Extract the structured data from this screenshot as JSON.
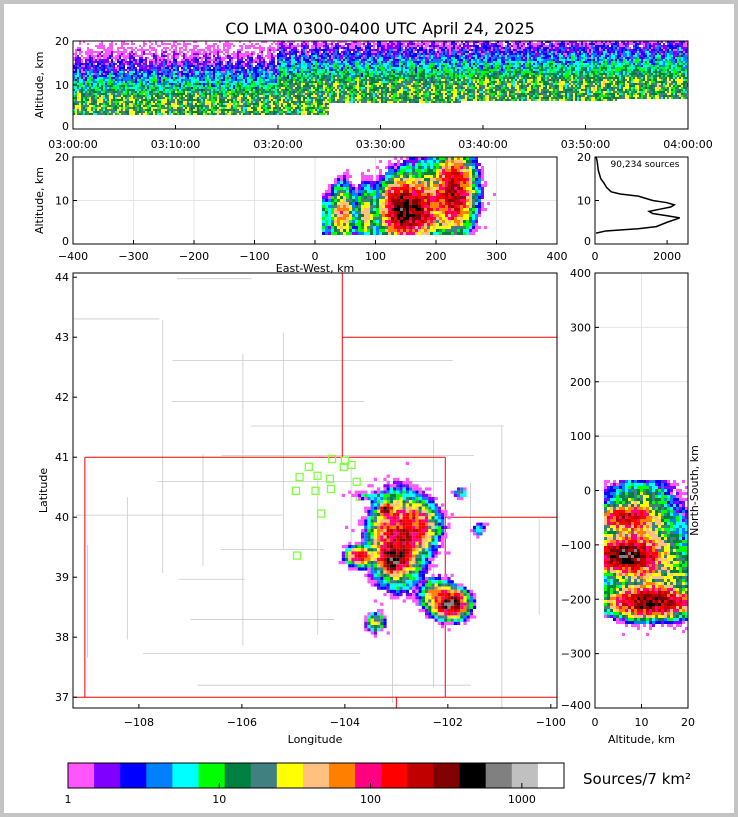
{
  "chart_data": [
    {
      "id": "time_height",
      "type": "heatmap",
      "title": "CO LMA 0300-0400 UTC April 24, 2025",
      "xlabel": "",
      "ylabel": "Altitude, km",
      "xlim": [
        0,
        60
      ],
      "ylim": [
        0,
        20
      ],
      "xticks": [
        0,
        10,
        20,
        30,
        40,
        50,
        60
      ],
      "xticklabels": [
        "03:00:00",
        "03:10:00",
        "03:20:00",
        "03:30:00",
        "03:40:00",
        "03:50:00",
        "04:00:00"
      ],
      "yticks": [
        0,
        10,
        20
      ]
    },
    {
      "id": "ew_height",
      "type": "heatmap",
      "xlabel": "East-West, km",
      "ylabel": "Altitude, km",
      "xlim": [
        -400,
        400
      ],
      "ylim": [
        0,
        20
      ],
      "xticks": [
        -400,
        -300,
        -200,
        -100,
        0,
        100,
        200,
        300,
        400
      ],
      "xticklabels": [
        "−400",
        "−300",
        "−200",
        "−100",
        "0",
        "100",
        "200",
        "300",
        "400"
      ],
      "yticks": [
        0,
        10,
        20
      ],
      "cells": [
        [
          16,
          6,
          3,
          2.5,
          12
        ],
        [
          45,
          7,
          10,
          3,
          60
        ],
        [
          85,
          7,
          8,
          3,
          40
        ],
        [
          145,
          8,
          16,
          3,
          400
        ],
        [
          175,
          8,
          18,
          3,
          150
        ],
        [
          230,
          12,
          14,
          4,
          250
        ],
        [
          195,
          12,
          30,
          4,
          20
        ]
      ]
    },
    {
      "id": "altitude_histogram",
      "type": "line",
      "annotation": "90,234 sources",
      "xlim": [
        0,
        2580
      ],
      "ylim": [
        0,
        20
      ],
      "xticks": [
        0,
        2000
      ],
      "xticklabels": [
        "0",
        "2000"
      ],
      "yticks": [
        0,
        10,
        20
      ],
      "alt": [
        2.5,
        3,
        3.5,
        4,
        5,
        6,
        6.5,
        7,
        7.5,
        8,
        8.5,
        9,
        9.5,
        10,
        11,
        11.5,
        12,
        13,
        14,
        15,
        17,
        19,
        20
      ],
      "count": [
        30,
        300,
        1200,
        1700,
        2000,
        2350,
        2000,
        1600,
        1500,
        1800,
        2100,
        2200,
        2000,
        1600,
        1200,
        700,
        450,
        320,
        250,
        160,
        90,
        60,
        30
      ]
    },
    {
      "id": "plan_view",
      "type": "heatmap",
      "xlabel": "Longitude",
      "ylabel": "Latitude",
      "xlim": [
        -109.28,
        -99.88
      ],
      "ylim": [
        36.82,
        44.07
      ],
      "xticks": [
        -108,
        -106,
        -104,
        -102,
        -100
      ],
      "xticklabels": [
        "−108",
        "−106",
        "−104",
        "−102",
        "−100"
      ],
      "yticks": [
        37,
        38,
        39,
        40,
        41,
        42,
        43,
        44
      ],
      "yticklabels": [
        "37",
        "38",
        "39",
        "40",
        "41",
        "42",
        "43",
        "44"
      ],
      "cells": [
        [
          -102.97,
          39.63,
          0.22,
          0.3,
          200
        ],
        [
          -103.05,
          39.3,
          0.12,
          0.1,
          600
        ],
        [
          -102.6,
          39.85,
          0.18,
          0.18,
          120
        ],
        [
          -102.21,
          38.7,
          0.15,
          0.12,
          60
        ],
        [
          -101.95,
          38.55,
          0.14,
          0.1,
          500
        ],
        [
          -103.7,
          39.35,
          0.12,
          0.07,
          150
        ],
        [
          -103.4,
          38.25,
          0.08,
          0.07,
          40
        ],
        [
          -101.75,
          40.4,
          0.06,
          0.04,
          15
        ],
        [
          -101.4,
          39.8,
          0.06,
          0.05,
          10
        ],
        [
          -103.45,
          40.35,
          0.18,
          0.03,
          8
        ],
        [
          -103.2,
          40.12,
          0.05,
          0.05,
          500
        ]
      ],
      "stations": [
        [
          -104.25,
          40.97
        ],
        [
          -104.0,
          40.94
        ],
        [
          -104.7,
          40.84
        ],
        [
          -104.02,
          40.84
        ],
        [
          -103.87,
          40.87
        ],
        [
          -104.88,
          40.67
        ],
        [
          -104.53,
          40.69
        ],
        [
          -104.29,
          40.64
        ],
        [
          -103.77,
          40.59
        ],
        [
          -104.95,
          40.44
        ],
        [
          -104.57,
          40.44
        ],
        [
          -104.27,
          40.47
        ],
        [
          -103.71,
          40.34
        ],
        [
          -104.46,
          40.06
        ],
        [
          -104.93,
          39.36
        ]
      ],
      "station_color": "#80ff40",
      "border_color": "#ff0000"
    },
    {
      "id": "ns_height",
      "type": "heatmap",
      "xlabel": "Altitude, km",
      "ylabel": "North-South, km",
      "xlim": [
        0,
        20
      ],
      "ylim": [
        -400,
        400
      ],
      "xticks": [
        0,
        10,
        20
      ],
      "yticks": [
        -400,
        -300,
        -200,
        -100,
        0,
        100,
        200,
        300,
        400
      ],
      "yticklabels": [
        "−400",
        "−300",
        "−200",
        "−100",
        "0",
        "100",
        "200",
        "300",
        "400"
      ],
      "cells": [
        [
          7,
          -50,
          3,
          10,
          200
        ],
        [
          7,
          -120,
          3,
          14,
          500
        ],
        [
          12,
          -205,
          4,
          12,
          400
        ],
        [
          9,
          -90,
          5,
          40,
          40
        ],
        [
          13,
          -160,
          5,
          30,
          30
        ],
        [
          10,
          -10,
          3,
          15,
          15
        ]
      ]
    }
  ],
  "colorbar": {
    "label": "Sources/7 km²",
    "ticks": [
      1,
      10,
      100,
      1000
    ],
    "ticklabels": [
      "1",
      "10",
      "100",
      "1000"
    ],
    "max": 1900,
    "colors": [
      "#ff55ff",
      "#8000ff",
      "#0000ff",
      "#0080ff",
      "#00ffff",
      "#00ff00",
      "#008040",
      "#408080",
      "#ffff00",
      "#ffc080",
      "#ff8000",
      "#ff0080",
      "#ff0000",
      "#c00000",
      "#800000",
      "#000000",
      "#808080",
      "#c0c0c0",
      "#ffffff"
    ]
  }
}
